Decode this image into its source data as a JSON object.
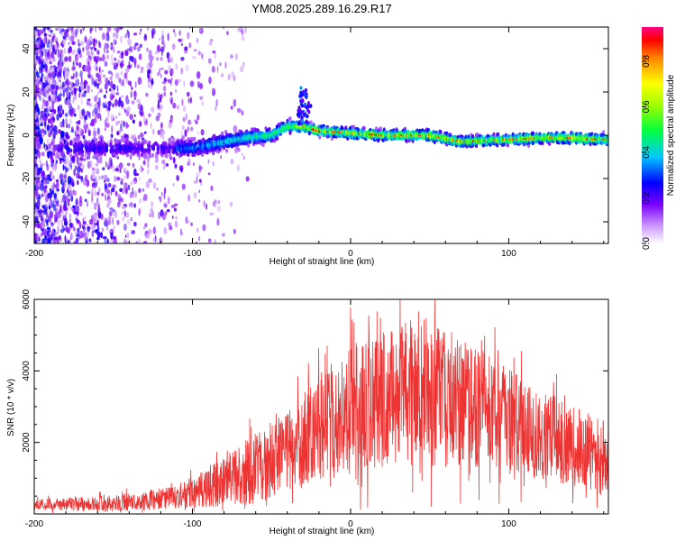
{
  "title": "YM08.2025.289.16.29.R17",
  "chart_data": [
    {
      "type": "heatmap",
      "name": "spectrogram",
      "xlabel": "Height of straight line (km)",
      "ylabel": "Frequency (Hz)",
      "xlim": [
        -200,
        163
      ],
      "ylim": [
        -50,
        50
      ],
      "xticks": [
        -200,
        -100,
        0,
        100
      ],
      "yticks": [
        -40,
        -20,
        0,
        20,
        40
      ],
      "colorbar": {
        "label": "Normalized spectral amplitude",
        "range": [
          0.0,
          0.95
        ],
        "ticks": [
          0.0,
          0.2,
          0.4,
          0.6,
          0.8
        ]
      },
      "signal_track": [
        {
          "x": -100,
          "f": -6
        },
        {
          "x": -80,
          "f": -3
        },
        {
          "x": -65,
          "f": -1
        },
        {
          "x": -50,
          "f": 0
        },
        {
          "x": -40,
          "f": 4
        },
        {
          "x": -30,
          "f": 4
        },
        {
          "x": -20,
          "f": 2
        },
        {
          "x": 0,
          "f": 1
        },
        {
          "x": 20,
          "f": 0
        },
        {
          "x": 50,
          "f": 0
        },
        {
          "x": 70,
          "f": -3
        },
        {
          "x": 100,
          "f": -2
        },
        {
          "x": 130,
          "f": -1
        },
        {
          "x": 163,
          "f": -2
        }
      ],
      "burst": {
        "x": -28,
        "f_range": [
          5,
          22
        ]
      }
    },
    {
      "type": "line",
      "name": "snr",
      "xlabel": "Height of straight line (km)",
      "ylabel": "SNR (10 * v/v)",
      "xlim": [
        -200,
        163
      ],
      "ylim": [
        0,
        6000
      ],
      "xticks": [
        -200,
        -100,
        0,
        100
      ],
      "yticks": [
        2000,
        4000,
        6000
      ],
      "color": "#ee3333",
      "envelope": [
        {
          "x": -200,
          "mean": 250,
          "amp": 200
        },
        {
          "x": -150,
          "mean": 300,
          "amp": 300
        },
        {
          "x": -110,
          "mean": 450,
          "amp": 450
        },
        {
          "x": -80,
          "mean": 900,
          "amp": 900
        },
        {
          "x": -60,
          "mean": 1300,
          "amp": 1400
        },
        {
          "x": -40,
          "mean": 1700,
          "amp": 1500
        },
        {
          "x": -20,
          "mean": 2400,
          "amp": 2000
        },
        {
          "x": 0,
          "mean": 2900,
          "amp": 2400
        },
        {
          "x": 30,
          "mean": 3400,
          "amp": 2700
        },
        {
          "x": 55,
          "mean": 3400,
          "amp": 2800
        },
        {
          "x": 80,
          "mean": 3000,
          "amp": 2300
        },
        {
          "x": 110,
          "mean": 2400,
          "amp": 1800
        },
        {
          "x": 140,
          "mean": 1900,
          "amp": 1500
        },
        {
          "x": 163,
          "mean": 1500,
          "amp": 1400
        }
      ]
    }
  ]
}
